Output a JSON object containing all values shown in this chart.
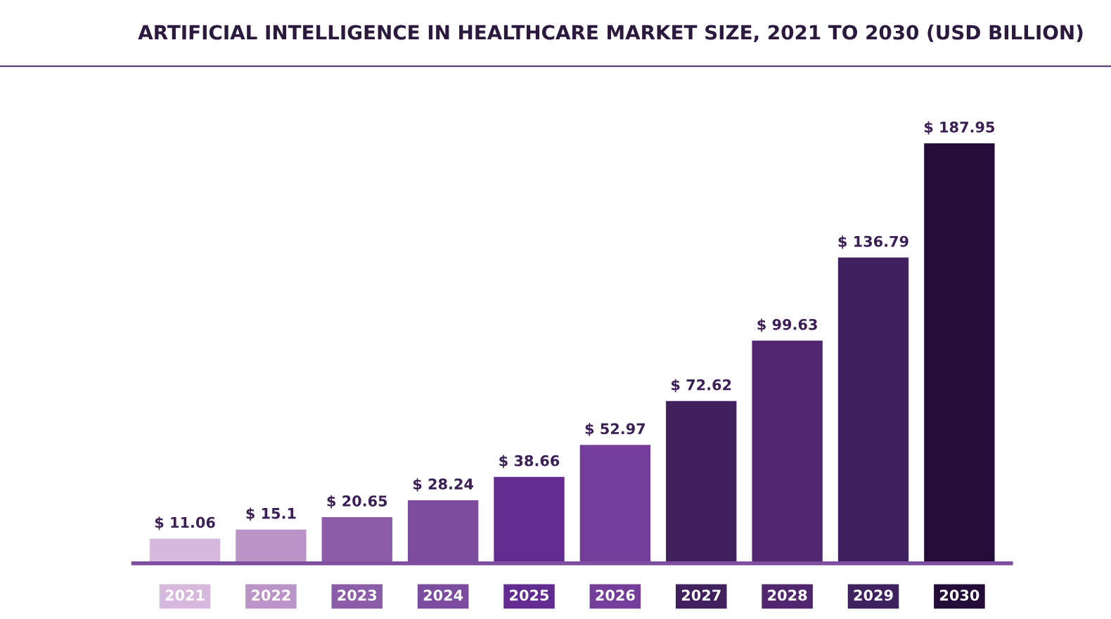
{
  "chart_data": {
    "type": "bar",
    "title": "ARTIFICIAL INTELLIGENCE IN HEALTHCARE MARKET SIZE, 2021 TO 2030 (USD BILLION)",
    "categories": [
      "2021",
      "2022",
      "2023",
      "2024",
      "2025",
      "2026",
      "2027",
      "2028",
      "2029",
      "2030"
    ],
    "values": [
      11.06,
      15.1,
      20.65,
      28.24,
      38.66,
      52.97,
      72.62,
      99.63,
      136.79,
      187.95
    ],
    "colors": [
      "#d6b9dc",
      "#bb94c7",
      "#8b5ca8",
      "#7c4d9f",
      "#622b8f",
      "#733d99",
      "#41205e",
      "#52266f",
      "#3f2160",
      "#230c38"
    ],
    "value_labels": [
      "$ 11.06",
      "$ 15.1",
      "$ 20.65",
      "$ 28.24",
      "$ 38.66",
      "$ 52.97",
      "$ 72.62",
      "$ 99.63",
      "$ 136.79",
      "$ 187.95"
    ]
  }
}
